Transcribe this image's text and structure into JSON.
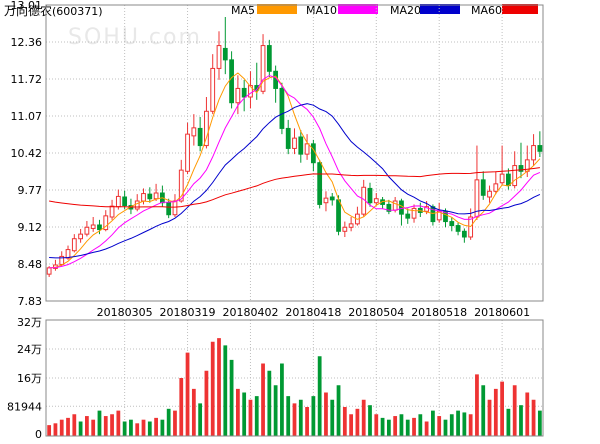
{
  "header": {
    "stock_name": "万向德农",
    "stock_code": "(600371)",
    "watermark": "SOHU.com"
  },
  "legend": [
    {
      "name": "MA5",
      "color": "#ff9900"
    },
    {
      "name": "MA10",
      "color": "#ff00ff"
    },
    {
      "name": "MA20",
      "color": "#0000cc"
    },
    {
      "name": "MA60",
      "color": "#ee0000"
    }
  ],
  "colors": {
    "up": "#ee3333",
    "down": "#009933",
    "grid": "#bfbfbf",
    "border": "#888888"
  },
  "chart_data": [
    {
      "type": "candlestick",
      "price_axis_ticks": [
        "13.01",
        "12.36",
        "11.72",
        "11.07",
        "10.42",
        "9.77",
        "9.12",
        "8.48",
        "7.83"
      ],
      "ylim": [
        7.83,
        13.01
      ],
      "date_labels": [
        "20180305",
        "20180319",
        "20180402",
        "20180418",
        "20180504",
        "20180518",
        "20180601"
      ],
      "date_label_positions": [
        12,
        22,
        32,
        42,
        52,
        62,
        72
      ],
      "candles": [
        [
          8.3,
          8.41,
          8.25,
          8.44
        ],
        [
          8.4,
          8.46,
          8.36,
          8.55
        ],
        [
          8.47,
          8.61,
          8.44,
          8.7
        ],
        [
          8.58,
          8.73,
          8.55,
          8.8
        ],
        [
          8.71,
          8.92,
          8.68,
          9.0
        ],
        [
          8.92,
          9.0,
          8.85,
          9.09
        ],
        [
          9.0,
          9.12,
          8.96,
          9.23
        ],
        [
          9.1,
          9.16,
          9.04,
          9.3
        ],
        [
          9.16,
          9.08,
          9.0,
          9.25
        ],
        [
          9.08,
          9.32,
          9.05,
          9.42
        ],
        [
          9.3,
          9.49,
          9.25,
          9.6
        ],
        [
          9.48,
          9.66,
          9.43,
          9.78
        ],
        [
          9.65,
          9.5,
          9.44,
          9.76
        ],
        [
          9.5,
          9.44,
          9.35,
          9.62
        ],
        [
          9.44,
          9.58,
          9.4,
          9.7
        ],
        [
          9.58,
          9.71,
          9.52,
          9.8
        ],
        [
          9.7,
          9.62,
          9.55,
          9.82
        ],
        [
          9.62,
          9.72,
          9.58,
          9.88
        ],
        [
          9.72,
          9.55,
          9.48,
          9.85
        ],
        [
          9.55,
          9.34,
          9.28,
          9.62
        ],
        [
          9.34,
          9.58,
          9.3,
          9.7
        ],
        [
          9.58,
          10.12,
          9.55,
          10.3
        ],
        [
          10.1,
          10.75,
          10.05,
          10.95
        ],
        [
          10.72,
          10.86,
          10.55,
          11.1
        ],
        [
          10.85,
          10.55,
          10.45,
          11.05
        ],
        [
          10.55,
          11.15,
          10.5,
          11.4
        ],
        [
          11.15,
          11.9,
          11.1,
          12.15
        ],
        [
          11.9,
          12.3,
          11.7,
          12.55
        ],
        [
          12.25,
          12.05,
          11.8,
          12.8
        ],
        [
          12.05,
          11.3,
          11.2,
          12.2
        ],
        [
          11.3,
          11.55,
          11.1,
          11.78
        ],
        [
          11.55,
          11.4,
          11.15,
          11.7
        ],
        [
          11.4,
          11.6,
          11.2,
          11.85
        ],
        [
          11.6,
          11.52,
          11.35,
          12.0
        ],
        [
          11.5,
          12.3,
          11.45,
          12.5
        ],
        [
          12.3,
          11.85,
          11.75,
          12.4
        ],
        [
          11.85,
          11.55,
          11.3,
          11.95
        ],
        [
          11.55,
          10.85,
          10.75,
          11.65
        ],
        [
          10.85,
          10.5,
          10.4,
          11.0
        ],
        [
          10.5,
          10.68,
          10.4,
          10.85
        ],
        [
          10.7,
          10.4,
          10.25,
          10.82
        ],
        [
          10.4,
          10.58,
          10.3,
          10.75
        ],
        [
          10.58,
          10.25,
          10.1,
          10.65
        ],
        [
          10.25,
          9.52,
          9.45,
          10.3
        ],
        [
          9.55,
          9.63,
          9.4,
          9.75
        ],
        [
          9.65,
          9.6,
          9.5,
          9.72
        ],
        [
          9.6,
          9.05,
          8.98,
          9.68
        ],
        [
          9.05,
          9.12,
          8.95,
          9.22
        ],
        [
          9.12,
          9.18,
          9.05,
          9.3
        ],
        [
          9.18,
          9.35,
          9.15,
          9.48
        ],
        [
          9.35,
          9.82,
          9.3,
          9.95
        ],
        [
          9.8,
          9.55,
          9.48,
          9.9
        ],
        [
          9.55,
          9.62,
          9.5,
          9.72
        ],
        [
          9.6,
          9.52,
          9.45,
          9.65
        ],
        [
          9.52,
          9.4,
          9.35,
          9.6
        ],
        [
          9.42,
          9.58,
          9.38,
          9.65
        ],
        [
          9.58,
          9.35,
          9.15,
          9.62
        ],
        [
          9.35,
          9.28,
          9.18,
          9.45
        ],
        [
          9.28,
          9.45,
          9.2,
          9.52
        ],
        [
          9.45,
          9.38,
          9.3,
          9.55
        ],
        [
          9.4,
          9.48,
          9.35,
          9.58
        ],
        [
          9.48,
          9.22,
          9.15,
          9.52
        ],
        [
          9.25,
          9.4,
          9.2,
          9.55
        ],
        [
          9.4,
          9.22,
          9.12,
          9.45
        ],
        [
          9.22,
          9.15,
          9.05,
          9.3
        ],
        [
          9.15,
          9.05,
          8.98,
          9.2
        ],
        [
          9.05,
          8.95,
          8.85,
          9.1
        ],
        [
          8.95,
          9.3,
          8.9,
          9.45
        ],
        [
          9.3,
          9.95,
          9.25,
          10.55
        ],
        [
          9.95,
          9.68,
          9.6,
          10.1
        ],
        [
          9.65,
          9.75,
          9.55,
          9.85
        ],
        [
          9.75,
          9.88,
          9.7,
          10.1
        ],
        [
          9.9,
          10.05,
          9.85,
          10.55
        ],
        [
          10.05,
          9.85,
          9.78,
          10.15
        ],
        [
          9.85,
          10.2,
          9.8,
          10.45
        ],
        [
          10.2,
          10.1,
          9.98,
          10.6
        ],
        [
          10.1,
          10.3,
          10.0,
          10.55
        ],
        [
          10.3,
          10.55,
          10.2,
          10.75
        ],
        [
          10.55,
          10.45,
          10.35,
          10.8
        ]
      ]
    },
    {
      "type": "bar",
      "volume_axis_ticks": [
        "32万",
        "24万",
        "16万",
        "81944",
        "0"
      ],
      "ylim": [
        0,
        320000
      ],
      "volume_series": [
        [
          30000,
          "up"
        ],
        [
          35000,
          "up"
        ],
        [
          45000,
          "up"
        ],
        [
          50000,
          "up"
        ],
        [
          60000,
          "up"
        ],
        [
          40000,
          "down"
        ],
        [
          55000,
          "up"
        ],
        [
          45000,
          "up"
        ],
        [
          70000,
          "down"
        ],
        [
          55000,
          "up"
        ],
        [
          60000,
          "up"
        ],
        [
          70000,
          "up"
        ],
        [
          40000,
          "down"
        ],
        [
          45000,
          "down"
        ],
        [
          35000,
          "up"
        ],
        [
          45000,
          "up"
        ],
        [
          40000,
          "down"
        ],
        [
          50000,
          "up"
        ],
        [
          45000,
          "down"
        ],
        [
          75000,
          "down"
        ],
        [
          70000,
          "up"
        ],
        [
          160000,
          "up"
        ],
        [
          230000,
          "up"
        ],
        [
          130000,
          "up"
        ],
        [
          90000,
          "down"
        ],
        [
          180000,
          "up"
        ],
        [
          260000,
          "up"
        ],
        [
          270000,
          "up"
        ],
        [
          250000,
          "down"
        ],
        [
          210000,
          "down"
        ],
        [
          130000,
          "up"
        ],
        [
          120000,
          "down"
        ],
        [
          100000,
          "up"
        ],
        [
          110000,
          "down"
        ],
        [
          200000,
          "up"
        ],
        [
          180000,
          "down"
        ],
        [
          140000,
          "down"
        ],
        [
          200000,
          "down"
        ],
        [
          110000,
          "down"
        ],
        [
          90000,
          "up"
        ],
        [
          100000,
          "down"
        ],
        [
          80000,
          "up"
        ],
        [
          110000,
          "down"
        ],
        [
          220000,
          "down"
        ],
        [
          120000,
          "up"
        ],
        [
          100000,
          "down"
        ],
        [
          140000,
          "down"
        ],
        [
          80000,
          "up"
        ],
        [
          60000,
          "up"
        ],
        [
          75000,
          "up"
        ],
        [
          100000,
          "up"
        ],
        [
          85000,
          "down"
        ],
        [
          60000,
          "up"
        ],
        [
          50000,
          "down"
        ],
        [
          45000,
          "down"
        ],
        [
          55000,
          "up"
        ],
        [
          60000,
          "down"
        ],
        [
          45000,
          "down"
        ],
        [
          50000,
          "up"
        ],
        [
          60000,
          "down"
        ],
        [
          40000,
          "up"
        ],
        [
          70000,
          "down"
        ],
        [
          55000,
          "up"
        ],
        [
          45000,
          "down"
        ],
        [
          60000,
          "down"
        ],
        [
          70000,
          "down"
        ],
        [
          65000,
          "down"
        ],
        [
          60000,
          "up"
        ],
        [
          170000,
          "up"
        ],
        [
          140000,
          "down"
        ],
        [
          100000,
          "up"
        ],
        [
          130000,
          "up"
        ],
        [
          150000,
          "up"
        ],
        [
          75000,
          "down"
        ],
        [
          140000,
          "up"
        ],
        [
          85000,
          "down"
        ],
        [
          120000,
          "up"
        ],
        [
          100000,
          "up"
        ],
        [
          70000,
          "down"
        ]
      ]
    }
  ]
}
